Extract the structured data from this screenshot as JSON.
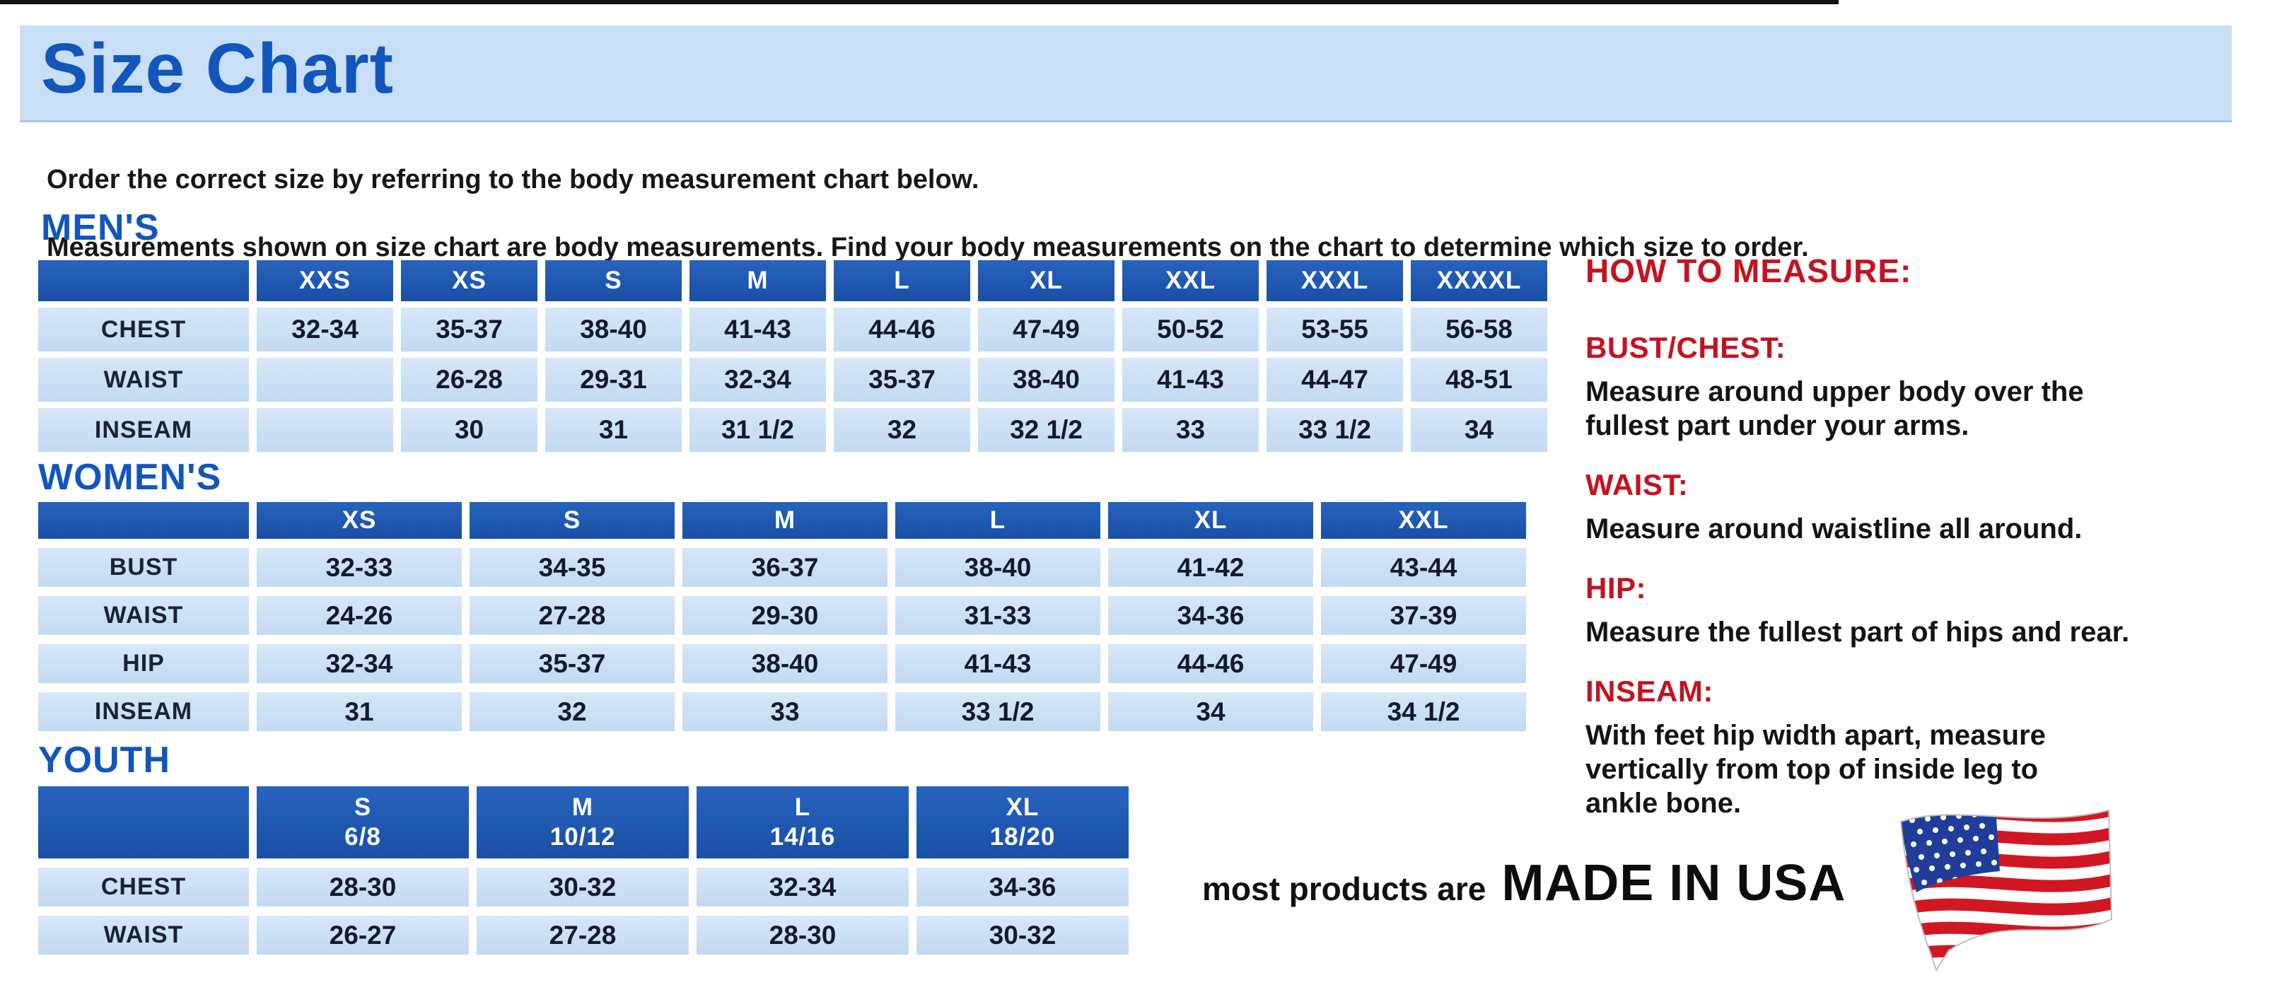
{
  "page": {
    "title": "Size Chart",
    "intro_lines": [
      "Order the correct size by referring to the body measurement chart below.",
      "Measurements shown on size chart are body measurements.  Find your body measurements on the chart to determine which size to order."
    ]
  },
  "colors": {
    "banner_blue": "#c9dff7",
    "title_blue": "#1256bb",
    "table_header_blue": "#1e56ae",
    "cell_light_blue": "#c7def4",
    "accent_red": "#c41320",
    "text_dark": "#141a2e"
  },
  "tables": {
    "mens": {
      "label": "MEN'S",
      "columns": [
        "XXS",
        "XS",
        "S",
        "M",
        "L",
        "XL",
        "XXL",
        "XXXL",
        "XXXXL"
      ],
      "rows": [
        {
          "label": "CHEST",
          "values": [
            "32-34",
            "35-37",
            "38-40",
            "41-43",
            "44-46",
            "47-49",
            "50-52",
            "53-55",
            "56-58"
          ]
        },
        {
          "label": "WAIST",
          "values": [
            "",
            "26-28",
            "29-31",
            "32-34",
            "35-37",
            "38-40",
            "41-43",
            "44-47",
            "48-51"
          ]
        },
        {
          "label": "INSEAM",
          "values": [
            "",
            "30",
            "31",
            "31 1/2",
            "32",
            "32 1/2",
            "33",
            "33 1/2",
            "34"
          ]
        }
      ]
    },
    "womens": {
      "label": "WOMEN'S",
      "columns": [
        "XS",
        "S",
        "M",
        "L",
        "XL",
        "XXL"
      ],
      "rows": [
        {
          "label": "BUST",
          "values": [
            "32-33",
            "34-35",
            "36-37",
            "38-40",
            "41-42",
            "43-44"
          ]
        },
        {
          "label": "WAIST",
          "values": [
            "24-26",
            "27-28",
            "29-30",
            "31-33",
            "34-36",
            "37-39"
          ]
        },
        {
          "label": "HIP",
          "values": [
            "32-34",
            "35-37",
            "38-40",
            "41-43",
            "44-46",
            "47-49"
          ]
        },
        {
          "label": "INSEAM",
          "values": [
            "31",
            "32",
            "33",
            "33 1/2",
            "34",
            "34 1/2"
          ]
        }
      ]
    },
    "youth": {
      "label": "YOUTH",
      "columns": [
        {
          "size": "S",
          "range": "6/8"
        },
        {
          "size": "M",
          "range": "10/12"
        },
        {
          "size": "L",
          "range": "14/16"
        },
        {
          "size": "XL",
          "range": "18/20"
        }
      ],
      "rows": [
        {
          "label": "CHEST",
          "values": [
            "28-30",
            "30-32",
            "32-34",
            "34-36"
          ]
        },
        {
          "label": "WAIST",
          "values": [
            "26-27",
            "27-28",
            "28-30",
            "30-32"
          ]
        }
      ]
    }
  },
  "how_to_measure": {
    "title": "HOW TO MEASURE:",
    "items": [
      {
        "label": "BUST/CHEST:",
        "text": "Measure around upper body over the\nfullest part under your arms."
      },
      {
        "label": "WAIST:",
        "text": "Measure around waistline all around."
      },
      {
        "label": "HIP:",
        "text": "Measure the fullest part of hips and rear."
      },
      {
        "label": "INSEAM:",
        "text": "With feet hip width apart, measure\nvertically from top of inside leg to\nankle bone."
      }
    ]
  },
  "footer": {
    "made_in_prefix": "most products are",
    "made_in": "MADE IN USA",
    "flag_icon": "usa-flag"
  }
}
